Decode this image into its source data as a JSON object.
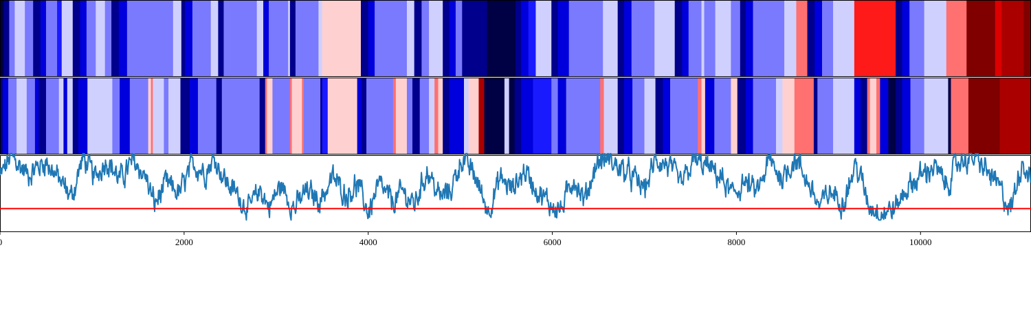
{
  "chart_data": [
    {
      "type": "heatmap",
      "name": "segment-strip-top",
      "x_range": [
        0,
        11200
      ],
      "colors": {
        "very_dark_blue": "#000044",
        "dark_blue": "#00008c",
        "blue": "#0000dc",
        "medium_blue": "#1a1aff",
        "periwinkle": "#7a7aff",
        "lavender": "#d0d0ff",
        "pink": "#ffd0d0",
        "salmon": "#ff7070",
        "red": "#ff1a1a",
        "crimson": "#dc0000",
        "dark_red": "#aa0000",
        "maroon": "#800000"
      },
      "segments": [
        [
          0,
          40,
          "very_dark_blue"
        ],
        [
          40,
          100,
          "dark_blue"
        ],
        [
          100,
          160,
          "periwinkle"
        ],
        [
          160,
          270,
          "lavender"
        ],
        [
          270,
          360,
          "periwinkle"
        ],
        [
          360,
          440,
          "dark_blue"
        ],
        [
          440,
          500,
          "blue"
        ],
        [
          500,
          620,
          "periwinkle"
        ],
        [
          620,
          670,
          "medium_blue"
        ],
        [
          670,
          790,
          "lavender"
        ],
        [
          790,
          870,
          "dark_blue"
        ],
        [
          870,
          940,
          "blue"
        ],
        [
          940,
          1040,
          "periwinkle"
        ],
        [
          1040,
          1140,
          "lavender"
        ],
        [
          1140,
          1210,
          "periwinkle"
        ],
        [
          1210,
          1290,
          "dark_blue"
        ],
        [
          1290,
          1380,
          "blue"
        ],
        [
          1380,
          1880,
          "periwinkle"
        ],
        [
          1880,
          1970,
          "lavender"
        ],
        [
          1970,
          2010,
          "dark_blue"
        ],
        [
          2010,
          2090,
          "blue"
        ],
        [
          2090,
          2290,
          "periwinkle"
        ],
        [
          2290,
          2370,
          "lavender"
        ],
        [
          2370,
          2430,
          "dark_blue"
        ],
        [
          2430,
          2790,
          "periwinkle"
        ],
        [
          2790,
          2860,
          "lavender"
        ],
        [
          2860,
          2920,
          "blue"
        ],
        [
          2920,
          3130,
          "periwinkle"
        ],
        [
          3130,
          3150,
          "lavender"
        ],
        [
          3150,
          3210,
          "dark_blue"
        ],
        [
          3210,
          3460,
          "periwinkle"
        ],
        [
          3460,
          3500,
          "lavender"
        ],
        [
          3500,
          3920,
          "pink"
        ],
        [
          3920,
          4000,
          "dark_blue"
        ],
        [
          4000,
          4070,
          "blue"
        ],
        [
          4070,
          4420,
          "periwinkle"
        ],
        [
          4420,
          4500,
          "lavender"
        ],
        [
          4500,
          4580,
          "dark_blue"
        ],
        [
          4580,
          4660,
          "periwinkle"
        ],
        [
          4660,
          4810,
          "lavender"
        ],
        [
          4810,
          4880,
          "dark_blue"
        ],
        [
          4880,
          4950,
          "blue"
        ],
        [
          4950,
          5020,
          "periwinkle"
        ],
        [
          5020,
          5290,
          "dark_blue"
        ],
        [
          5290,
          5600,
          "very_dark_blue"
        ],
        [
          5600,
          5660,
          "dark_blue"
        ],
        [
          5660,
          5740,
          "blue"
        ],
        [
          5740,
          5820,
          "medium_blue"
        ],
        [
          5820,
          5990,
          "lavender"
        ],
        [
          5990,
          6060,
          "dark_blue"
        ],
        [
          6060,
          6180,
          "blue"
        ],
        [
          6180,
          6550,
          "periwinkle"
        ],
        [
          6550,
          6710,
          "lavender"
        ],
        [
          6710,
          6780,
          "dark_blue"
        ],
        [
          6780,
          6860,
          "blue"
        ],
        [
          6860,
          7110,
          "periwinkle"
        ],
        [
          7110,
          7330,
          "lavender"
        ],
        [
          7330,
          7410,
          "dark_blue"
        ],
        [
          7410,
          7480,
          "blue"
        ],
        [
          7480,
          7620,
          "periwinkle"
        ],
        [
          7620,
          7650,
          "lavender"
        ],
        [
          7650,
          7770,
          "periwinkle"
        ],
        [
          7770,
          7940,
          "lavender"
        ],
        [
          7940,
          8040,
          "periwinkle"
        ],
        [
          8040,
          8100,
          "dark_blue"
        ],
        [
          8100,
          8180,
          "blue"
        ],
        [
          8180,
          8520,
          "periwinkle"
        ],
        [
          8520,
          8650,
          "lavender"
        ],
        [
          8650,
          8770,
          "salmon"
        ],
        [
          8770,
          8850,
          "dark_blue"
        ],
        [
          8850,
          8930,
          "blue"
        ],
        [
          8930,
          9050,
          "periwinkle"
        ],
        [
          9050,
          9280,
          "lavender"
        ],
        [
          9280,
          9730,
          "red"
        ],
        [
          9730,
          9800,
          "dark_blue"
        ],
        [
          9800,
          9880,
          "blue"
        ],
        [
          9880,
          10040,
          "periwinkle"
        ],
        [
          10040,
          10280,
          "lavender"
        ],
        [
          10280,
          10500,
          "salmon"
        ],
        [
          10500,
          10810,
          "maroon"
        ],
        [
          10810,
          10880,
          "crimson"
        ],
        [
          10880,
          11120,
          "dark_red"
        ],
        [
          11120,
          11200,
          "maroon"
        ]
      ]
    },
    {
      "type": "heatmap",
      "name": "segment-strip-middle",
      "x_range": [
        0,
        11200
      ],
      "segments": [
        [
          0,
          30,
          "dark_blue"
        ],
        [
          30,
          90,
          "blue"
        ],
        [
          90,
          180,
          "periwinkle"
        ],
        [
          180,
          290,
          "lavender"
        ],
        [
          290,
          380,
          "periwinkle"
        ],
        [
          380,
          420,
          "blue"
        ],
        [
          420,
          500,
          "dark_blue"
        ],
        [
          500,
          640,
          "periwinkle"
        ],
        [
          640,
          690,
          "lavender"
        ],
        [
          690,
          730,
          "blue"
        ],
        [
          730,
          790,
          "lavender"
        ],
        [
          790,
          850,
          "dark_blue"
        ],
        [
          850,
          950,
          "blue"
        ],
        [
          950,
          1220,
          "lavender"
        ],
        [
          1220,
          1300,
          "periwinkle"
        ],
        [
          1300,
          1410,
          "blue"
        ],
        [
          1410,
          1610,
          "periwinkle"
        ],
        [
          1610,
          1640,
          "pink"
        ],
        [
          1640,
          1660,
          "salmon"
        ],
        [
          1660,
          1780,
          "lavender"
        ],
        [
          1780,
          1830,
          "periwinkle"
        ],
        [
          1830,
          1960,
          "lavender"
        ],
        [
          1960,
          2060,
          "dark_blue"
        ],
        [
          2060,
          2150,
          "blue"
        ],
        [
          2150,
          2350,
          "periwinkle"
        ],
        [
          2350,
          2410,
          "dark_blue"
        ],
        [
          2410,
          2820,
          "periwinkle"
        ],
        [
          2820,
          2880,
          "dark_blue"
        ],
        [
          2880,
          2900,
          "salmon"
        ],
        [
          2900,
          2960,
          "pink"
        ],
        [
          2960,
          3150,
          "periwinkle"
        ],
        [
          3150,
          3170,
          "salmon"
        ],
        [
          3170,
          3280,
          "pink"
        ],
        [
          3280,
          3300,
          "salmon"
        ],
        [
          3300,
          3480,
          "periwinkle"
        ],
        [
          3480,
          3500,
          "dark_blue"
        ],
        [
          3500,
          3560,
          "medium_blue"
        ],
        [
          3560,
          3880,
          "pink"
        ],
        [
          3880,
          3930,
          "blue"
        ],
        [
          3930,
          3980,
          "dark_blue"
        ],
        [
          3980,
          4270,
          "periwinkle"
        ],
        [
          4270,
          4300,
          "salmon"
        ],
        [
          4300,
          4420,
          "pink"
        ],
        [
          4420,
          4480,
          "periwinkle"
        ],
        [
          4480,
          4560,
          "dark_blue"
        ],
        [
          4560,
          4660,
          "periwinkle"
        ],
        [
          4660,
          4720,
          "lavender"
        ],
        [
          4720,
          4760,
          "salmon"
        ],
        [
          4760,
          4810,
          "pink"
        ],
        [
          4810,
          4880,
          "dark_blue"
        ],
        [
          4880,
          5040,
          "blue"
        ],
        [
          5040,
          5090,
          "lavender"
        ],
        [
          5090,
          5200,
          "pink"
        ],
        [
          5200,
          5260,
          "dark_red"
        ],
        [
          5260,
          5480,
          "very_dark_blue"
        ],
        [
          5480,
          5530,
          "lavender"
        ],
        [
          5530,
          5590,
          "very_dark_blue"
        ],
        [
          5590,
          5660,
          "dark_blue"
        ],
        [
          5660,
          5790,
          "blue"
        ],
        [
          5790,
          5990,
          "medium_blue"
        ],
        [
          5990,
          6060,
          "periwinkle"
        ],
        [
          6060,
          6150,
          "blue"
        ],
        [
          6150,
          6520,
          "periwinkle"
        ],
        [
          6520,
          6560,
          "salmon"
        ],
        [
          6560,
          6710,
          "lavender"
        ],
        [
          6710,
          6780,
          "dark_blue"
        ],
        [
          6780,
          6870,
          "blue"
        ],
        [
          6870,
          7000,
          "periwinkle"
        ],
        [
          7000,
          7120,
          "lavender"
        ],
        [
          7120,
          7200,
          "dark_blue"
        ],
        [
          7200,
          7280,
          "blue"
        ],
        [
          7280,
          7580,
          "periwinkle"
        ],
        [
          7580,
          7620,
          "salmon"
        ],
        [
          7620,
          7660,
          "pink"
        ],
        [
          7660,
          7760,
          "blue"
        ],
        [
          7760,
          7940,
          "periwinkle"
        ],
        [
          7940,
          8010,
          "pink"
        ],
        [
          8010,
          8100,
          "dark_blue"
        ],
        [
          8100,
          8180,
          "blue"
        ],
        [
          8180,
          8430,
          "periwinkle"
        ],
        [
          8430,
          8500,
          "lavender"
        ],
        [
          8500,
          8630,
          "pink"
        ],
        [
          8630,
          8840,
          "salmon"
        ],
        [
          8840,
          8880,
          "dark_blue"
        ],
        [
          8880,
          9050,
          "periwinkle"
        ],
        [
          9050,
          9280,
          "lavender"
        ],
        [
          9280,
          9350,
          "blue"
        ],
        [
          9350,
          9420,
          "dark_blue"
        ],
        [
          9420,
          9450,
          "salmon"
        ],
        [
          9450,
          9520,
          "pink"
        ],
        [
          9520,
          9560,
          "salmon"
        ],
        [
          9560,
          9650,
          "blue"
        ],
        [
          9650,
          9730,
          "very_dark_blue"
        ],
        [
          9730,
          9800,
          "dark_blue"
        ],
        [
          9800,
          9890,
          "blue"
        ],
        [
          9890,
          10040,
          "periwinkle"
        ],
        [
          10040,
          10300,
          "lavender"
        ],
        [
          10300,
          10330,
          "very_dark_blue"
        ],
        [
          10330,
          10520,
          "salmon"
        ],
        [
          10520,
          10860,
          "maroon"
        ],
        [
          10860,
          11200,
          "dark_red"
        ]
      ]
    },
    {
      "type": "line",
      "name": "signal-track",
      "x_range": [
        0,
        11200
      ],
      "y_range": [
        0,
        1
      ],
      "line_color": "#1f77b4",
      "threshold": 0.3,
      "threshold_color": "#ff0000",
      "grid": false,
      "xticks": [
        0,
        2000,
        4000,
        6000,
        8000,
        10000
      ],
      "xtick_labels": [
        "0",
        "2000",
        "4000",
        "6000",
        "8000",
        "10000"
      ],
      "profile": {
        "x": [
          0,
          120,
          300,
          500,
          640,
          780,
          900,
          1030,
          1160,
          1300,
          1450,
          1580,
          1680,
          1800,
          1950,
          2100,
          2230,
          2330,
          2450,
          2600,
          2700,
          2830,
          2920,
          3050,
          3200,
          3320,
          3480,
          3620,
          3760,
          3880,
          4000,
          4120,
          4260,
          4380,
          4500,
          4640,
          4780,
          4900,
          5020,
          5160,
          5300,
          5440,
          5560,
          5700,
          5860,
          5980,
          6100,
          6230,
          6350,
          6480,
          6600,
          6740,
          6880,
          7000,
          7130,
          7260,
          7400,
          7540,
          7680,
          7820,
          7960,
          8080,
          8220,
          8360,
          8500,
          8640,
          8780,
          8900,
          9020,
          9160,
          9300,
          9440,
          9580,
          9720,
          9860,
          10000,
          10140,
          10280,
          10420,
          10560,
          10700,
          10840,
          10980,
          11100,
          11200
        ],
        "y": [
          0.72,
          0.98,
          0.75,
          0.92,
          0.68,
          0.45,
          0.97,
          0.7,
          0.95,
          0.68,
          0.92,
          0.72,
          0.35,
          0.62,
          0.5,
          0.88,
          0.78,
          0.97,
          0.66,
          0.45,
          0.28,
          0.55,
          0.32,
          0.6,
          0.3,
          0.52,
          0.42,
          0.7,
          0.48,
          0.62,
          0.25,
          0.6,
          0.38,
          0.52,
          0.34,
          0.8,
          0.44,
          0.55,
          0.97,
          0.72,
          0.28,
          0.7,
          0.55,
          0.8,
          0.5,
          0.35,
          0.28,
          0.72,
          0.4,
          0.9,
          0.96,
          0.82,
          0.7,
          0.55,
          0.95,
          0.86,
          0.6,
          0.93,
          0.85,
          0.72,
          0.46,
          0.65,
          0.5,
          0.92,
          0.7,
          0.96,
          0.64,
          0.32,
          0.52,
          0.4,
          0.88,
          0.35,
          0.25,
          0.3,
          0.58,
          0.72,
          0.86,
          0.6,
          0.92,
          0.98,
          0.82,
          0.6,
          0.28,
          0.92,
          0.72
        ]
      },
      "noise": 0.09
    }
  ]
}
